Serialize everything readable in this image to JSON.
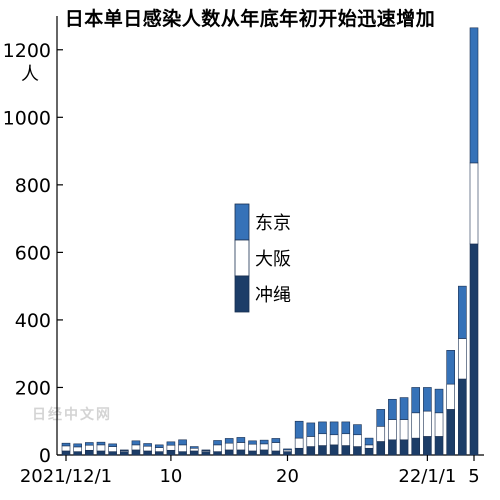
{
  "title": "日本单日感染人数从年底年初开始迅速增加",
  "unit_label": "人",
  "watermark": "日经中文网",
  "colors": {
    "tokyo": "#3672b8",
    "osaka": "#ffffff",
    "other": "#1c3d68",
    "stroke": "#1a2f50"
  },
  "chart_data": {
    "type": "bar",
    "stacked": true,
    "title": "日本单日感染人数从年底年初开始迅速增加",
    "ylabel": "人",
    "ylim": [
      0,
      1300
    ],
    "yticks": [
      0,
      200,
      400,
      600,
      800,
      1000,
      1200
    ],
    "x_tick_labels": [
      {
        "index": 0,
        "label": "2021/12/1"
      },
      {
        "index": 9,
        "label": "10"
      },
      {
        "index": 19,
        "label": "20"
      },
      {
        "index": 31,
        "label": "22/1/1"
      },
      {
        "index": 35,
        "label": "5"
      }
    ],
    "x": [
      "12/1",
      "12/2",
      "12/3",
      "12/4",
      "12/5",
      "12/6",
      "12/7",
      "12/8",
      "12/9",
      "12/10",
      "12/11",
      "12/12",
      "12/13",
      "12/14",
      "12/15",
      "12/16",
      "12/17",
      "12/18",
      "12/19",
      "12/20",
      "12/21",
      "12/22",
      "12/23",
      "12/24",
      "12/25",
      "12/26",
      "12/27",
      "12/28",
      "12/29",
      "12/30",
      "12/31",
      "1/1",
      "1/2",
      "1/3",
      "1/4",
      "1/5"
    ],
    "legend": {
      "position": "center",
      "entries": [
        "东京",
        "大阪",
        "冲绳"
      ]
    },
    "series": [
      {
        "name": "冲绳",
        "key": "other",
        "values": [
          12,
          10,
          14,
          12,
          10,
          10,
          15,
          12,
          10,
          14,
          10,
          12,
          10,
          10,
          15,
          15,
          12,
          15,
          12,
          10,
          20,
          25,
          28,
          30,
          28,
          25,
          20,
          40,
          45,
          45,
          50,
          55,
          55,
          135,
          225,
          625
        ]
      },
      {
        "name": "大阪",
        "key": "osaka",
        "values": [
          15,
          14,
          15,
          18,
          15,
          3,
          15,
          14,
          12,
          15,
          20,
          8,
          3,
          20,
          20,
          22,
          20,
          18,
          25,
          5,
          30,
          30,
          35,
          30,
          35,
          35,
          10,
          45,
          60,
          60,
          75,
          75,
          70,
          75,
          120,
          240
        ]
      },
      {
        "name": "东京",
        "key": "tokyo",
        "values": [
          8,
          9,
          8,
          8,
          8,
          2,
          12,
          8,
          8,
          10,
          15,
          5,
          2,
          13,
          14,
          15,
          10,
          11,
          12,
          3,
          50,
          40,
          35,
          38,
          35,
          30,
          20,
          50,
          60,
          65,
          75,
          70,
          70,
          100,
          155,
          400
        ]
      }
    ]
  }
}
